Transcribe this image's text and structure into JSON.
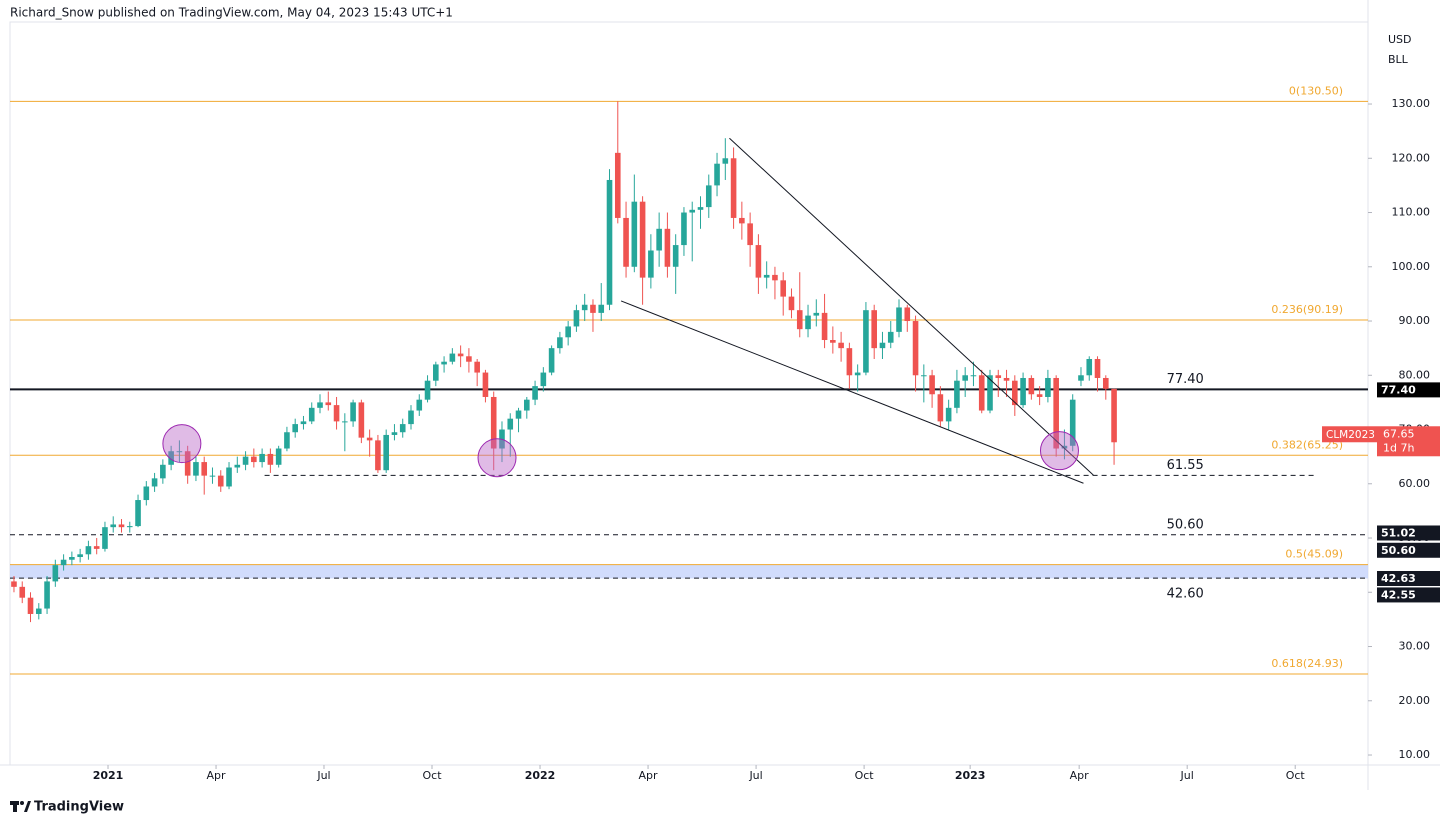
{
  "chart_data": {
    "type": "candlestick",
    "header": "Richard_Snow published on TradingView.com, May 04, 2023 15:43 UTC+1",
    "currency": "USD",
    "unit": "BLL",
    "brand": "TradingView",
    "up_color": "#26a69a",
    "down_color": "#ef5350",
    "open": [
      42,
      41,
      39,
      36,
      37,
      42,
      45,
      46,
      46.5,
      47,
      48.5,
      48,
      52,
      52.5,
      52,
      52.2,
      57,
      59.5,
      61,
      63.5,
      66,
      66,
      61.5,
      64,
      61.5,
      61.5,
      59.5,
      63,
      63.5,
      65,
      64,
      65.5,
      63.5,
      66.5,
      69.5,
      71,
      71.5,
      74,
      75,
      74.5,
      71.5,
      71.5,
      75,
      68.5,
      68,
      62.5,
      69,
      69.5,
      71,
      73.5,
      75.5,
      79,
      82,
      82.5,
      84,
      83.5,
      82.5,
      80.5,
      76,
      66.5,
      70,
      72,
      73.5,
      75.5,
      78,
      80.5,
      85,
      87,
      89,
      92,
      93,
      91.5,
      93,
      121,
      109,
      100,
      112,
      98,
      103,
      107,
      100,
      104,
      110,
      110.5,
      111,
      115,
      119,
      120,
      109,
      108,
      104,
      98,
      98.5,
      97.5,
      94.5,
      92,
      88.5,
      91,
      91.5,
      86.5,
      86,
      85,
      80,
      80.5,
      92,
      85,
      86,
      88,
      92.5,
      90,
      80,
      80,
      76.5,
      71.5,
      74,
      79,
      80,
      80,
      73.5,
      80,
      79.5,
      79,
      74.5,
      79.5,
      76.5,
      76,
      79.5,
      66.5,
      67,
      79,
      80,
      83,
      79.5,
      77.5
    ],
    "high": [
      43,
      42,
      40,
      38,
      43,
      46,
      47,
      47.5,
      48,
      49.5,
      50,
      53,
      54,
      53.5,
      53,
      58,
      60.5,
      62,
      64.5,
      67,
      68,
      67,
      65,
      65,
      63,
      62.5,
      64,
      65,
      66,
      66.5,
      66.5,
      66.5,
      67,
      70.5,
      72,
      72.5,
      75,
      76.5,
      77,
      76,
      73,
      75.5,
      75.5,
      70,
      69,
      70,
      71,
      72,
      74.5,
      76.5,
      80,
      82.5,
      83.5,
      85,
      85.5,
      85,
      83,
      81,
      77,
      71.5,
      73,
      74,
      76,
      79,
      81.5,
      85.5,
      88,
      90,
      93,
      95,
      94,
      97,
      118,
      130.5,
      112,
      117,
      113,
      106,
      110,
      110,
      106,
      111,
      112,
      113,
      117,
      121,
      123.7,
      122,
      112,
      110,
      106,
      101,
      100,
      99,
      96,
      99,
      93,
      94,
      95,
      89,
      88,
      86,
      82,
      93.5,
      93,
      88,
      90,
      94,
      93,
      91,
      82,
      81,
      78,
      75.5,
      81,
      81.5,
      82.5,
      81,
      81,
      81,
      81,
      80,
      80.5,
      80,
      78,
      81,
      80,
      70,
      76.5,
      81.5,
      83.5,
      83.5,
      80,
      77.5
    ],
    "low": [
      40,
      38,
      34.5,
      35,
      36,
      41,
      44,
      45,
      45.5,
      46,
      47,
      47.5,
      51,
      51,
      51,
      52,
      56,
      58.5,
      60,
      62.5,
      64,
      60,
      60.5,
      58,
      60,
      58.5,
      59,
      62,
      62.5,
      63,
      63,
      62,
      63,
      66,
      68.5,
      70,
      71,
      73,
      73.5,
      70,
      66,
      70.5,
      67.5,
      65,
      62,
      62,
      68,
      68.5,
      70,
      72.5,
      75,
      78,
      80.5,
      82,
      81.5,
      80.5,
      78,
      75,
      62.5,
      64,
      65,
      69.5,
      72,
      74.5,
      77,
      80,
      84,
      85.5,
      88,
      90,
      88,
      90,
      92,
      108,
      98,
      99,
      93,
      96,
      100,
      98,
      95,
      102,
      101,
      107,
      109,
      113,
      116,
      107,
      105,
      100,
      95,
      96,
      94,
      91,
      90.5,
      87,
      87,
      89,
      85,
      84,
      82.5,
      77.5,
      77,
      80,
      83,
      83,
      85,
      87,
      88,
      77,
      75,
      74,
      70.5,
      70,
      73,
      76,
      78,
      73,
      73,
      76,
      76,
      72.5,
      74,
      75.5,
      74.5,
      75,
      65,
      64.5,
      66,
      78,
      79,
      77,
      75.5,
      63.5
    ],
    "close": [
      41,
      39,
      36,
      37,
      42,
      45,
      46,
      46.5,
      47,
      48.5,
      48,
      52,
      52.5,
      52,
      52.2,
      57,
      59.5,
      61,
      63.5,
      66,
      66,
      61.5,
      64,
      61.5,
      61.5,
      59.5,
      63,
      63.5,
      65,
      64,
      65.5,
      63.5,
      66.5,
      69.5,
      71,
      71.5,
      74,
      75,
      74.5,
      71.5,
      71.5,
      75,
      68.5,
      68,
      62.5,
      69,
      69.5,
      71,
      73.5,
      75.5,
      79,
      82,
      82.5,
      84,
      83.5,
      82.5,
      80.5,
      76,
      66.5,
      70,
      72,
      73.5,
      75.5,
      78,
      80.5,
      85,
      87,
      89,
      92,
      93,
      91.5,
      93,
      116,
      109,
      100,
      112,
      98,
      103,
      107,
      100,
      104,
      110,
      110.5,
      111,
      115,
      119,
      120,
      109,
      108,
      104,
      98,
      98.5,
      97.5,
      94.5,
      92,
      88.5,
      91,
      91.5,
      86.5,
      86,
      85,
      80,
      80.5,
      92,
      85,
      86,
      88,
      92.5,
      90,
      80,
      80,
      76.5,
      71.5,
      74,
      79,
      80,
      80,
      73.5,
      80,
      79.5,
      79,
      74.5,
      79.5,
      76.5,
      76,
      79.5,
      66.5,
      67,
      75.5,
      80,
      83,
      79.5,
      77.5,
      67.65
    ],
    "xlim": [
      -0.48,
      163.7
    ],
    "xticks": [
      {
        "value": 11.37,
        "label": "2021"
      },
      {
        "value": 24.43,
        "label": "Apr"
      },
      {
        "value": 37.48,
        "label": "Jul"
      },
      {
        "value": 50.54,
        "label": "Oct"
      },
      {
        "value": 63.6,
        "label": "2022"
      },
      {
        "value": 76.66,
        "label": "Apr"
      },
      {
        "value": 89.72,
        "label": "Jul"
      },
      {
        "value": 102.78,
        "label": "Oct"
      },
      {
        "value": 115.6,
        "label": "2023"
      },
      {
        "value": 128.78,
        "label": "Apr"
      },
      {
        "value": 141.84,
        "label": "Jul"
      },
      {
        "value": 154.9,
        "label": "Oct"
      }
    ],
    "ylim": [
      8.16,
      145.12
    ],
    "yticks": [
      {
        "value": 130,
        "label": "130.00"
      },
      {
        "value": 120,
        "label": "120.00"
      },
      {
        "value": 110,
        "label": "110.00"
      },
      {
        "value": 100,
        "label": "100.00"
      },
      {
        "value": 90,
        "label": "90.00"
      },
      {
        "value": 80,
        "label": "80.00"
      },
      {
        "value": 70,
        "label": "70.00"
      },
      {
        "value": 60,
        "label": "60.00"
      },
      {
        "value": 50,
        "label": "50.00"
      },
      {
        "value": 40,
        "label": "40.00"
      },
      {
        "value": 30,
        "label": "30.00"
      },
      {
        "value": 20,
        "label": "20.00"
      },
      {
        "value": 10,
        "label": "10.00"
      }
    ],
    "zone": {
      "from": 42.55,
      "to": 45.09,
      "color": "#c5d3fb"
    },
    "fib_levels": [
      {
        "value": 130.5,
        "label": "0(130.50)"
      },
      {
        "value": 90.19,
        "label": "0.236(90.19)"
      },
      {
        "value": 65.25,
        "label": "0.382(65.25)"
      },
      {
        "value": 45.09,
        "label": "0.5(45.09)"
      },
      {
        "value": 24.93,
        "label": "0.618(24.93)"
      }
    ],
    "fib_color": "#f0a830",
    "levels": [
      {
        "value": 77.4,
        "label": "77.40",
        "style": "solid"
      },
      {
        "value": 61.55,
        "label": "61.55",
        "style": "dashed",
        "from": 30.3,
        "to": 157.4
      },
      {
        "value": 50.6,
        "label": "50.60",
        "style": "dashed"
      },
      {
        "value": 42.6,
        "label": "42.60",
        "style": "dashed"
      }
    ],
    "level_label_x": 141.6,
    "trendlines": [
      {
        "x": [
          86.5,
          130.5
        ],
        "y": [
          123.7,
          61.6
        ]
      },
      {
        "x": [
          73.4,
          129.3
        ],
        "y": [
          93.7,
          60.1
        ]
      }
    ],
    "circles": [
      {
        "x": 20.3,
        "y": 67.4
      },
      {
        "x": 58.4,
        "y": 64.8
      },
      {
        "x": 126.4,
        "y": 66.1
      }
    ],
    "axis_tags": [
      {
        "value": 77.4,
        "label": "77.40",
        "color": "#000000"
      },
      {
        "value": 51.02,
        "label": "51.02",
        "color": "#131722"
      },
      {
        "value": 50.6,
        "label": "50.60",
        "color": "#131722"
      },
      {
        "value": 42.63,
        "label": "42.63",
        "color": "#131722"
      },
      {
        "value": 42.55,
        "label": "42.55",
        "color": "#131722"
      }
    ],
    "last_price": {
      "symbol": "CLM2023",
      "value": 67.65,
      "label": "67.65",
      "countdown": "1d 7h",
      "color": "#ef5350"
    }
  }
}
